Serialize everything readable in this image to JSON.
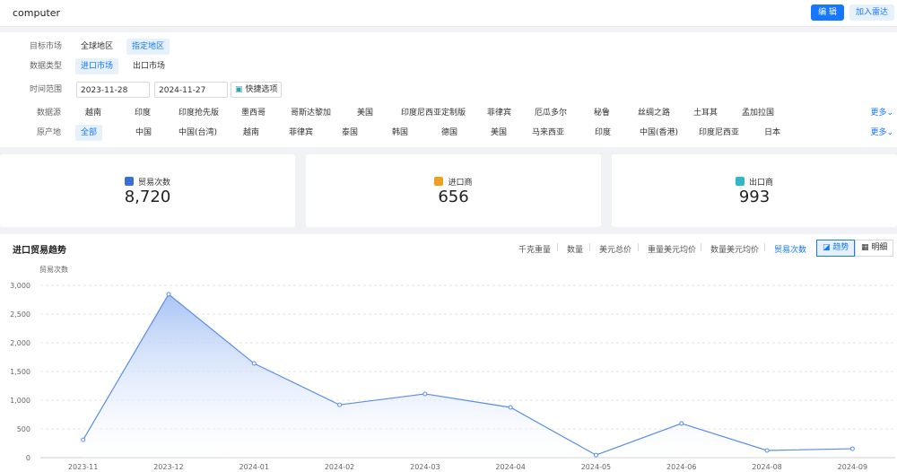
{
  "header": {
    "keyword": "computer",
    "edit_label": "编 辑",
    "add_radar_label": "加入雷达"
  },
  "filters": {
    "target_market": {
      "label": "目标市场",
      "options": [
        "全球地区",
        "指定地区"
      ],
      "selected": "指定地区"
    },
    "data_type": {
      "label": "数据类型",
      "options": [
        "进口市场",
        "出口市场"
      ],
      "selected": "进口市场"
    },
    "time_range": {
      "label": "时间范围",
      "start": "2023-11-28",
      "end": "2024-11-27",
      "quick_label": "快捷选项"
    },
    "data_source": {
      "label": "数据源",
      "options": [
        "越南",
        "印度",
        "印度抢先版",
        "墨西哥",
        "哥斯达黎加",
        "美国",
        "印度尼西亚定制版",
        "菲律宾",
        "厄瓜多尔",
        "秘鲁",
        "丝绸之路",
        "土耳其",
        "孟加拉国"
      ],
      "more": "更多"
    },
    "origin": {
      "label": "原产地",
      "options": [
        "全部",
        "中国",
        "中国(台湾)",
        "越南",
        "菲律宾",
        "泰国",
        "韩国",
        "德国",
        "美国",
        "马来西亚",
        "印度",
        "中国(香港)",
        "印度尼西亚",
        "日本"
      ],
      "selected": "全部",
      "more": "更多"
    }
  },
  "stats": [
    {
      "label": "贸易次数",
      "value": "8,720",
      "icon": "bar-chart-icon",
      "color": "#3b6fd8"
    },
    {
      "label": "进口商",
      "value": "656",
      "icon": "store-icon",
      "color": "#f0a020"
    },
    {
      "label": "出口商",
      "value": "993",
      "icon": "shop-icon",
      "color": "#30b8c8"
    }
  ],
  "trend": {
    "title": "进口贸易趋势",
    "metrics": [
      "千克重量",
      "数量",
      "美元总价",
      "重量美元均价",
      "数量美元均价",
      "贸易次数"
    ],
    "selected_metric": "贸易次数",
    "view_tabs": [
      "趋势",
      "明细"
    ],
    "selected_view": "趋势"
  },
  "chart_data": {
    "type": "area",
    "ylabel": "贸易次数",
    "ylim": [
      0,
      3000
    ],
    "yticks": [
      "0",
      "500",
      "1,000",
      "1,500",
      "2,000",
      "2,500",
      "3,000"
    ],
    "categories": [
      "2023-11",
      "2023-12",
      "2024-01",
      "2024-02",
      "2024-03",
      "2024-04",
      "2024-05",
      "2024-06",
      "2024-08",
      "2024-09"
    ],
    "values": [
      310,
      2845,
      1640,
      920,
      1110,
      875,
      45,
      595,
      125,
      155
    ],
    "color": "#5b8ee6",
    "grid": true
  }
}
